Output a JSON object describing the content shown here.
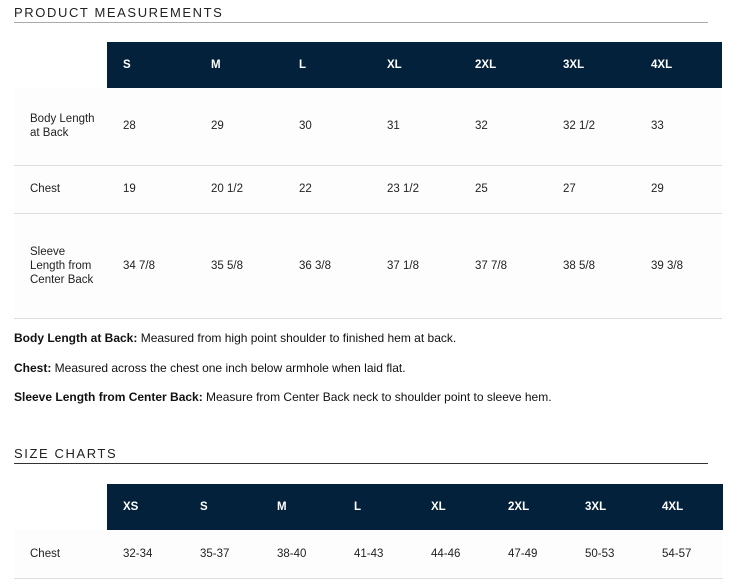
{
  "measurements": {
    "title": "PRODUCT MEASUREMENTS",
    "sizes": [
      "S",
      "M",
      "L",
      "XL",
      "2XL",
      "3XL",
      "4XL"
    ],
    "rows": [
      {
        "label": "Body Length at Back",
        "values": [
          "28",
          "29",
          "30",
          "31",
          "32",
          "32 1/2",
          "33"
        ]
      },
      {
        "label": "Chest",
        "values": [
          "19",
          "20 1/2",
          "22",
          "23 1/2",
          "25",
          "27",
          "29"
        ]
      },
      {
        "label": "Sleeve Length from Center Back",
        "values": [
          "34 7/8",
          "35 5/8",
          "36 3/8",
          "37 1/8",
          "37 7/8",
          "38 5/8",
          "39 3/8"
        ]
      }
    ],
    "notes": [
      {
        "term": "Body Length at Back:",
        "text": " Measured from high point shoulder to finished hem at back."
      },
      {
        "term": "Chest:",
        "text": " Measured across the chest one inch below armhole when laid flat."
      },
      {
        "term": "Sleeve Length from Center Back:",
        "text": " Measure from Center Back neck to shoulder point to sleeve hem."
      }
    ]
  },
  "size_chart": {
    "title": "SIZE CHARTS",
    "sizes": [
      "XS",
      "S",
      "M",
      "L",
      "XL",
      "2XL",
      "3XL",
      "4XL"
    ],
    "rows": [
      {
        "label": "Chest",
        "values": [
          "32-34",
          "35-37",
          "38-40",
          "41-43",
          "44-46",
          "47-49",
          "50-53",
          "54-57"
        ]
      }
    ]
  },
  "colors": {
    "header_bg": "#03213a"
  }
}
